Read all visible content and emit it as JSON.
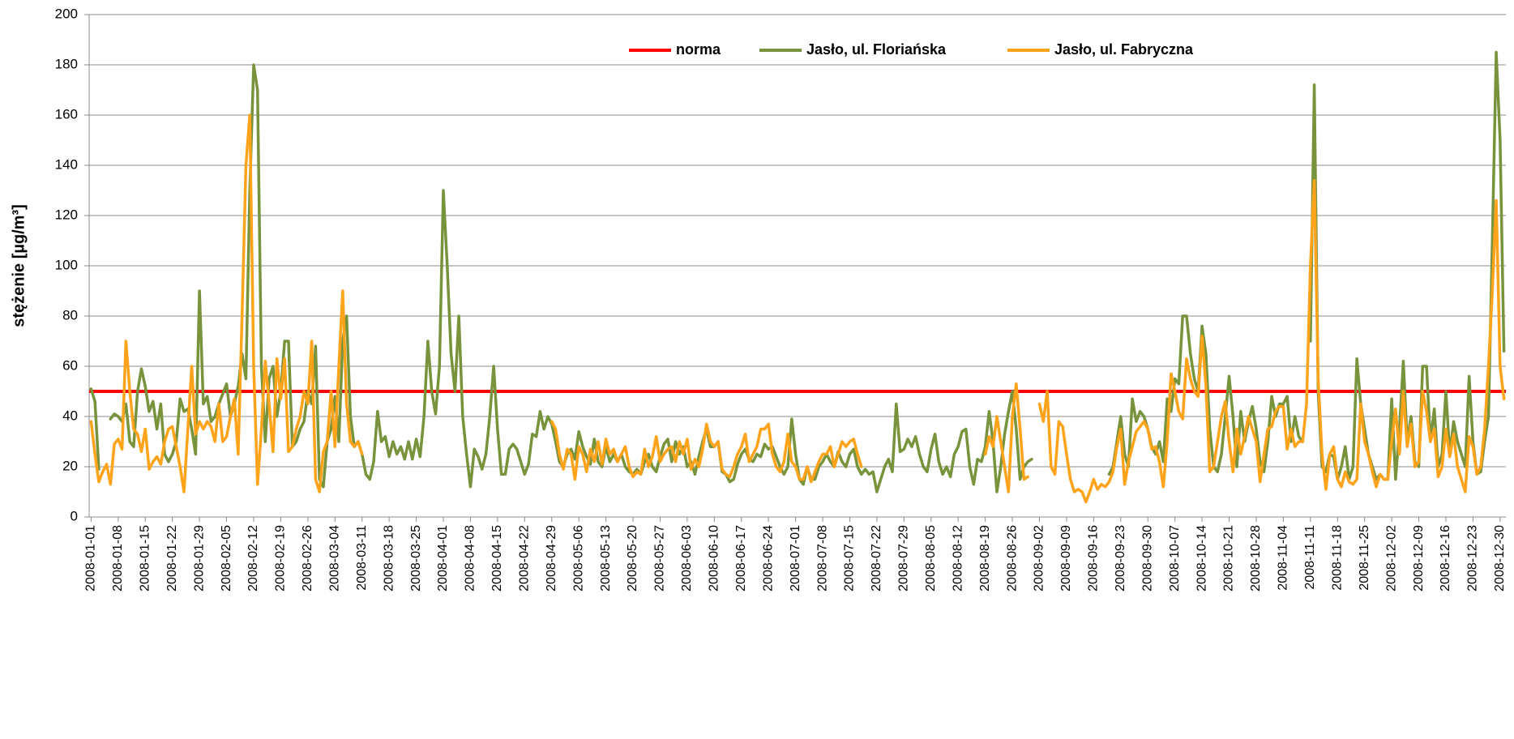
{
  "chart_data": {
    "type": "line",
    "ylabel": "stężenie [µg/m³]",
    "ylim": [
      0,
      200
    ],
    "yticks": [
      0,
      20,
      40,
      60,
      80,
      100,
      120,
      140,
      160,
      180,
      200
    ],
    "grid": true,
    "legend": "top",
    "reference_line": {
      "name": "norma",
      "value": 50,
      "color": "#ff0000"
    },
    "categories": [
      "2008-01-01",
      null,
      null,
      null,
      null,
      null,
      null,
      "2008-01-08",
      null,
      null,
      null,
      null,
      null,
      null,
      "2008-01-15",
      null,
      null,
      null,
      null,
      null,
      null,
      "2008-01-22",
      null,
      null,
      null,
      null,
      null,
      null,
      "2008-01-29",
      null,
      null,
      null,
      null,
      null,
      null,
      "2008-02-05",
      null,
      null,
      null,
      null,
      null,
      null,
      "2008-02-12",
      null,
      null,
      null,
      null,
      null,
      null,
      "2008-02-19",
      null,
      null,
      null,
      null,
      null,
      null,
      "2008-02-26",
      null,
      null,
      null,
      null,
      null,
      null,
      "2008-03-04",
      null,
      null,
      null,
      null,
      null,
      null,
      "2008-03-11",
      null,
      null,
      null,
      null,
      null,
      null,
      "2008-03-18",
      null,
      null,
      null,
      null,
      null,
      null,
      "2008-03-25",
      null,
      null,
      null,
      null,
      null,
      null,
      "2008-04-01",
      null,
      null,
      null,
      null,
      null,
      null,
      "2008-04-08",
      null,
      null,
      null,
      null,
      null,
      null,
      "2008-04-15",
      null,
      null,
      null,
      null,
      null,
      null,
      "2008-04-22",
      null,
      null,
      null,
      null,
      null,
      null,
      "2008-04-29",
      null,
      null,
      null,
      null,
      null,
      null,
      "2008-05-06",
      null,
      null,
      null,
      null,
      null,
      null,
      "2008-05-13",
      null,
      null,
      null,
      null,
      null,
      null,
      "2008-05-20",
      null,
      null,
      null,
      null,
      null,
      null,
      "2008-05-27",
      null,
      null,
      null,
      null,
      null,
      null,
      "2008-06-03",
      null,
      null,
      null,
      null,
      null,
      null,
      "2008-06-10",
      null,
      null,
      null,
      null,
      null,
      null,
      "2008-06-17",
      null,
      null,
      null,
      null,
      null,
      null,
      "2008-06-24",
      null,
      null,
      null,
      null,
      null,
      null,
      "2008-07-01",
      null,
      null,
      null,
      null,
      null,
      null,
      "2008-07-08",
      null,
      null,
      null,
      null,
      null,
      null,
      "2008-07-15",
      null,
      null,
      null,
      null,
      null,
      null,
      "2008-07-22",
      null,
      null,
      null,
      null,
      null,
      null,
      "2008-07-29",
      null,
      null,
      null,
      null,
      null,
      null,
      "2008-08-05",
      null,
      null,
      null,
      null,
      null,
      null,
      "2008-08-12",
      null,
      null,
      null,
      null,
      null,
      null,
      "2008-08-19",
      null,
      null,
      null,
      null,
      null,
      null,
      "2008-08-26",
      null,
      null,
      null,
      null,
      null,
      null,
      "2008-09-02",
      null,
      null,
      null,
      null,
      null,
      null,
      "2008-09-09",
      null,
      null,
      null,
      null,
      null,
      null,
      "2008-09-16",
      null,
      null,
      null,
      null,
      null,
      null,
      "2008-09-23",
      null,
      null,
      null,
      null,
      null,
      null,
      "2008-09-30",
      null,
      null,
      null,
      null,
      null,
      null,
      "2008-10-07",
      null,
      null,
      null,
      null,
      null,
      null,
      "2008-10-14",
      null,
      null,
      null,
      null,
      null,
      null,
      "2008-10-21",
      null,
      null,
      null,
      null,
      null,
      null,
      "2008-10-28",
      null,
      null,
      null,
      null,
      null,
      null,
      "2008-11-04",
      null,
      null,
      null,
      null,
      null,
      null,
      "2008-11-11",
      null,
      null,
      null,
      null,
      null,
      null,
      "2008-11-18",
      null,
      null,
      null,
      null,
      null,
      null,
      "2008-11-25",
      null,
      null,
      null,
      null,
      null,
      null,
      "2008-12-02",
      null,
      null,
      null,
      null,
      null,
      null,
      "2008-12-09",
      null,
      null,
      null,
      null,
      null,
      null,
      "2008-12-16",
      null,
      null,
      null,
      null,
      null,
      null,
      "2008-12-23",
      null,
      null,
      null,
      null,
      null,
      null,
      "2008-12-30",
      null
    ],
    "series": [
      {
        "name": "Jasło, ul. Floriańska",
        "color": "#77933c",
        "values": [
          51,
          46,
          19,
          null,
          null,
          39,
          41,
          40,
          38,
          45,
          30,
          28,
          50,
          59,
          52,
          42,
          46,
          35,
          45,
          25,
          22,
          25,
          30,
          47,
          42,
          43,
          35,
          25,
          90,
          45,
          48,
          38,
          40,
          45,
          49,
          53,
          40,
          45,
          52,
          65,
          55,
          130,
          180,
          170,
          60,
          30,
          55,
          60,
          40,
          50,
          70,
          70,
          28,
          30,
          35,
          38,
          50,
          45,
          68,
          15,
          12,
          30,
          35,
          48,
          30,
          70,
          80,
          40,
          28,
          30,
          25,
          17,
          15,
          22,
          42,
          30,
          32,
          24,
          30,
          25,
          28,
          23,
          30,
          23,
          31,
          24,
          40,
          70,
          50,
          41,
          60,
          130,
          100,
          65,
          50,
          80,
          40,
          25,
          12,
          27,
          24,
          19,
          25,
          40,
          60,
          35,
          17,
          17,
          27,
          29,
          27,
          22,
          17,
          21,
          33,
          32,
          42,
          35,
          40,
          37,
          30,
          22,
          20,
          25,
          27,
          23,
          34,
          28,
          24,
          21,
          31,
          22,
          20,
          28,
          22,
          25,
          22,
          25,
          20,
          18,
          17,
          19,
          17,
          22,
          25,
          20,
          18,
          24,
          29,
          31,
          22,
          30,
          25,
          28,
          20,
          22,
          17,
          24,
          30,
          35,
          28,
          28,
          30,
          18,
          17,
          14,
          15,
          21,
          25,
          27,
          23,
          22,
          25,
          24,
          29,
          27,
          28,
          24,
          20,
          17,
          20,
          39,
          25,
          15,
          13,
          20,
          15,
          15,
          20,
          22,
          25,
          22,
          20,
          26,
          22,
          20,
          25,
          27,
          20,
          17,
          19,
          17,
          18,
          10,
          15,
          20,
          23,
          18,
          45,
          26,
          27,
          31,
          28,
          32,
          25,
          20,
          18,
          27,
          33,
          22,
          17,
          20,
          16,
          25,
          28,
          34,
          35,
          20,
          13,
          23,
          22,
          28,
          42,
          30,
          10,
          20,
          33,
          42,
          50,
          35,
          15,
          20,
          22,
          23,
          null,
          null,
          null,
          null,
          null,
          null,
          null,
          null,
          null,
          null,
          null,
          null,
          null,
          null,
          null,
          null,
          null,
          null,
          null,
          17,
          20,
          30,
          40,
          25,
          20,
          47,
          38,
          42,
          40,
          35,
          28,
          25,
          30,
          22,
          47,
          42,
          55,
          53,
          80,
          80,
          65,
          55,
          50,
          76,
          65,
          35,
          20,
          18,
          25,
          40,
          56,
          40,
          20,
          42,
          30,
          38,
          44,
          35,
          22,
          18,
          30,
          48,
          40,
          45,
          45,
          48,
          30,
          40,
          32,
          30,
          null,
          70,
          172,
          50,
          20,
          18,
          25,
          24,
          15,
          20,
          28,
          15,
          20,
          63,
          45,
          35,
          25,
          20,
          15,
          17,
          15,
          15,
          47,
          15,
          35,
          62,
          30,
          40,
          22,
          20,
          60,
          60,
          30,
          43,
          20,
          25,
          50,
          25,
          38,
          30,
          25,
          20,
          56,
          30,
          17,
          18,
          30,
          40,
          110,
          185,
          150,
          66
        ]
      },
      {
        "name": "Jasło, ul. Fabryczna",
        "color": "#ffa31a",
        "values": [
          38,
          25,
          14,
          18,
          21,
          13,
          29,
          31,
          27,
          70,
          50,
          35,
          33,
          26,
          35,
          19,
          22,
          24,
          21,
          30,
          35,
          36,
          28,
          20,
          10,
          35,
          60,
          33,
          38,
          35,
          38,
          36,
          30,
          45,
          30,
          32,
          40,
          47,
          25,
          80,
          140,
          160,
          60,
          13,
          35,
          62,
          45,
          26,
          63,
          47,
          63,
          26,
          28,
          35,
          40,
          50,
          45,
          70,
          15,
          10,
          26,
          30,
          50,
          28,
          60,
          90,
          45,
          30,
          28,
          30,
          25,
          null,
          null,
          null,
          null,
          null,
          null,
          null,
          null,
          null,
          null,
          null,
          null,
          null,
          null,
          null,
          null,
          null,
          null,
          null,
          null,
          null,
          null,
          null,
          null,
          null,
          null,
          null,
          null,
          null,
          null,
          null,
          null,
          null,
          null,
          null,
          null,
          null,
          null,
          null,
          null,
          null,
          null,
          null,
          null,
          null,
          null,
          null,
          null,
          38,
          35,
          25,
          19,
          27,
          25,
          15,
          28,
          25,
          18,
          27,
          22,
          30,
          21,
          31,
          25,
          27,
          22,
          25,
          28,
          20,
          16,
          18,
          17,
          27,
          20,
          24,
          32,
          22,
          25,
          27,
          28,
          22,
          30,
          25,
          31,
          19,
          23,
          20,
          27,
          37,
          30,
          28,
          30,
          19,
          17,
          16,
          20,
          25,
          28,
          33,
          22,
          25,
          28,
          35,
          35,
          37,
          25,
          20,
          18,
          22,
          33,
          22,
          20,
          15,
          15,
          20,
          14,
          18,
          22,
          25,
          25,
          28,
          20,
          25,
          30,
          28,
          30,
          31,
          25,
          20,
          null,
          null,
          null,
          null,
          null,
          null,
          null,
          null,
          null,
          null,
          null,
          null,
          null,
          null,
          null,
          null,
          null,
          null,
          null,
          null,
          null,
          null,
          null,
          null,
          null,
          null,
          null,
          null,
          null,
          null,
          null,
          25,
          32,
          28,
          40,
          30,
          20,
          10,
          40,
          53,
          35,
          15,
          16,
          null,
          null,
          45,
          38,
          50,
          20,
          17,
          38,
          36,
          25,
          15,
          10,
          11,
          10,
          6,
          10,
          15,
          11,
          13,
          12,
          14,
          18,
          28,
          35,
          13,
          22,
          28,
          34,
          36,
          38,
          35,
          27,
          28,
          22,
          12,
          30,
          57,
          50,
          42,
          39,
          63,
          55,
          50,
          48,
          72,
          52,
          18,
          20,
          30,
          40,
          46,
          30,
          18,
          35,
          25,
          32,
          40,
          35,
          30,
          14,
          25,
          35,
          36,
          42,
          44,
          44,
          27,
          35,
          28,
          30,
          30,
          45,
          100,
          134,
          55,
          25,
          11,
          25,
          28,
          15,
          12,
          18,
          14,
          13,
          15,
          45,
          30,
          25,
          18,
          12,
          17,
          15,
          15,
          30,
          43,
          25,
          50,
          28,
          37,
          20,
          22,
          50,
          42,
          30,
          35,
          16,
          20,
          35,
          24,
          33,
          20,
          15,
          10,
          32,
          28,
          17,
          20,
          35,
          60,
          90,
          126,
          60,
          47
        ]
      }
    ]
  }
}
